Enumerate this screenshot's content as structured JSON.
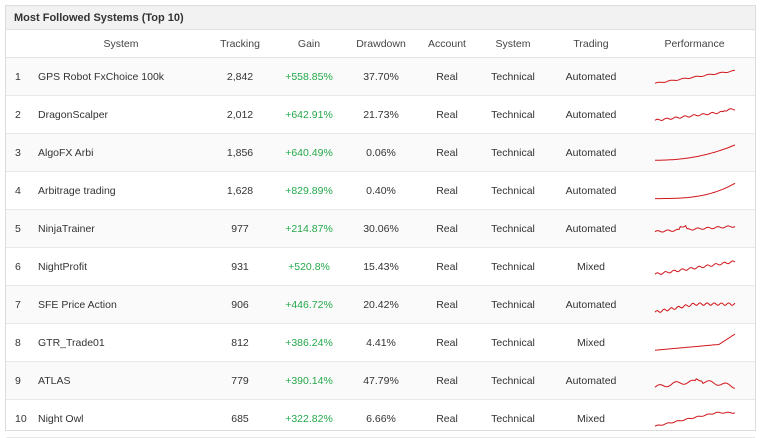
{
  "header": {
    "title": "Most Followed Systems (Top 10)"
  },
  "table": {
    "columns": [
      "System",
      "Tracking",
      "Gain",
      "Drawdown",
      "Account",
      "System",
      "Trading",
      "Performance"
    ],
    "rows": [
      [
        "1",
        "GPS Robot FxChoice 100k",
        "2,842",
        "+558.85%",
        "37.70%",
        "Real",
        "Technical",
        "Automated"
      ],
      [
        "2",
        "DragonScalper",
        "2,012",
        "+642.91%",
        "21.73%",
        "Real",
        "Technical",
        "Automated"
      ],
      [
        "3",
        "AlgoFX Arbi",
        "1,856",
        "+640.49%",
        "0.06%",
        "Real",
        "Technical",
        "Automated"
      ],
      [
        "4",
        "Arbitrage trading",
        "1,628",
        "+829.89%",
        "0.40%",
        "Real",
        "Technical",
        "Automated"
      ],
      [
        "5",
        "NinjaTrainer",
        "977",
        "+214.87%",
        "30.06%",
        "Real",
        "Technical",
        "Automated"
      ],
      [
        "6",
        "NightProfit",
        "931",
        "+520.8%",
        "15.43%",
        "Real",
        "Technical",
        "Mixed"
      ],
      [
        "7",
        "SFE Price Action",
        "906",
        "+446.72%",
        "20.42%",
        "Real",
        "Technical",
        "Automated"
      ],
      [
        "8",
        "GTR_Trade01",
        "812",
        "+386.24%",
        "4.41%",
        "Real",
        "Technical",
        "Mixed"
      ],
      [
        "9",
        "ATLAS",
        "779",
        "+390.14%",
        "47.79%",
        "Real",
        "Technical",
        "Automated"
      ],
      [
        "10",
        "Night Owl",
        "685",
        "+322.82%",
        "6.66%",
        "Real",
        "Technical",
        "Mixed"
      ]
    ]
  }
}
